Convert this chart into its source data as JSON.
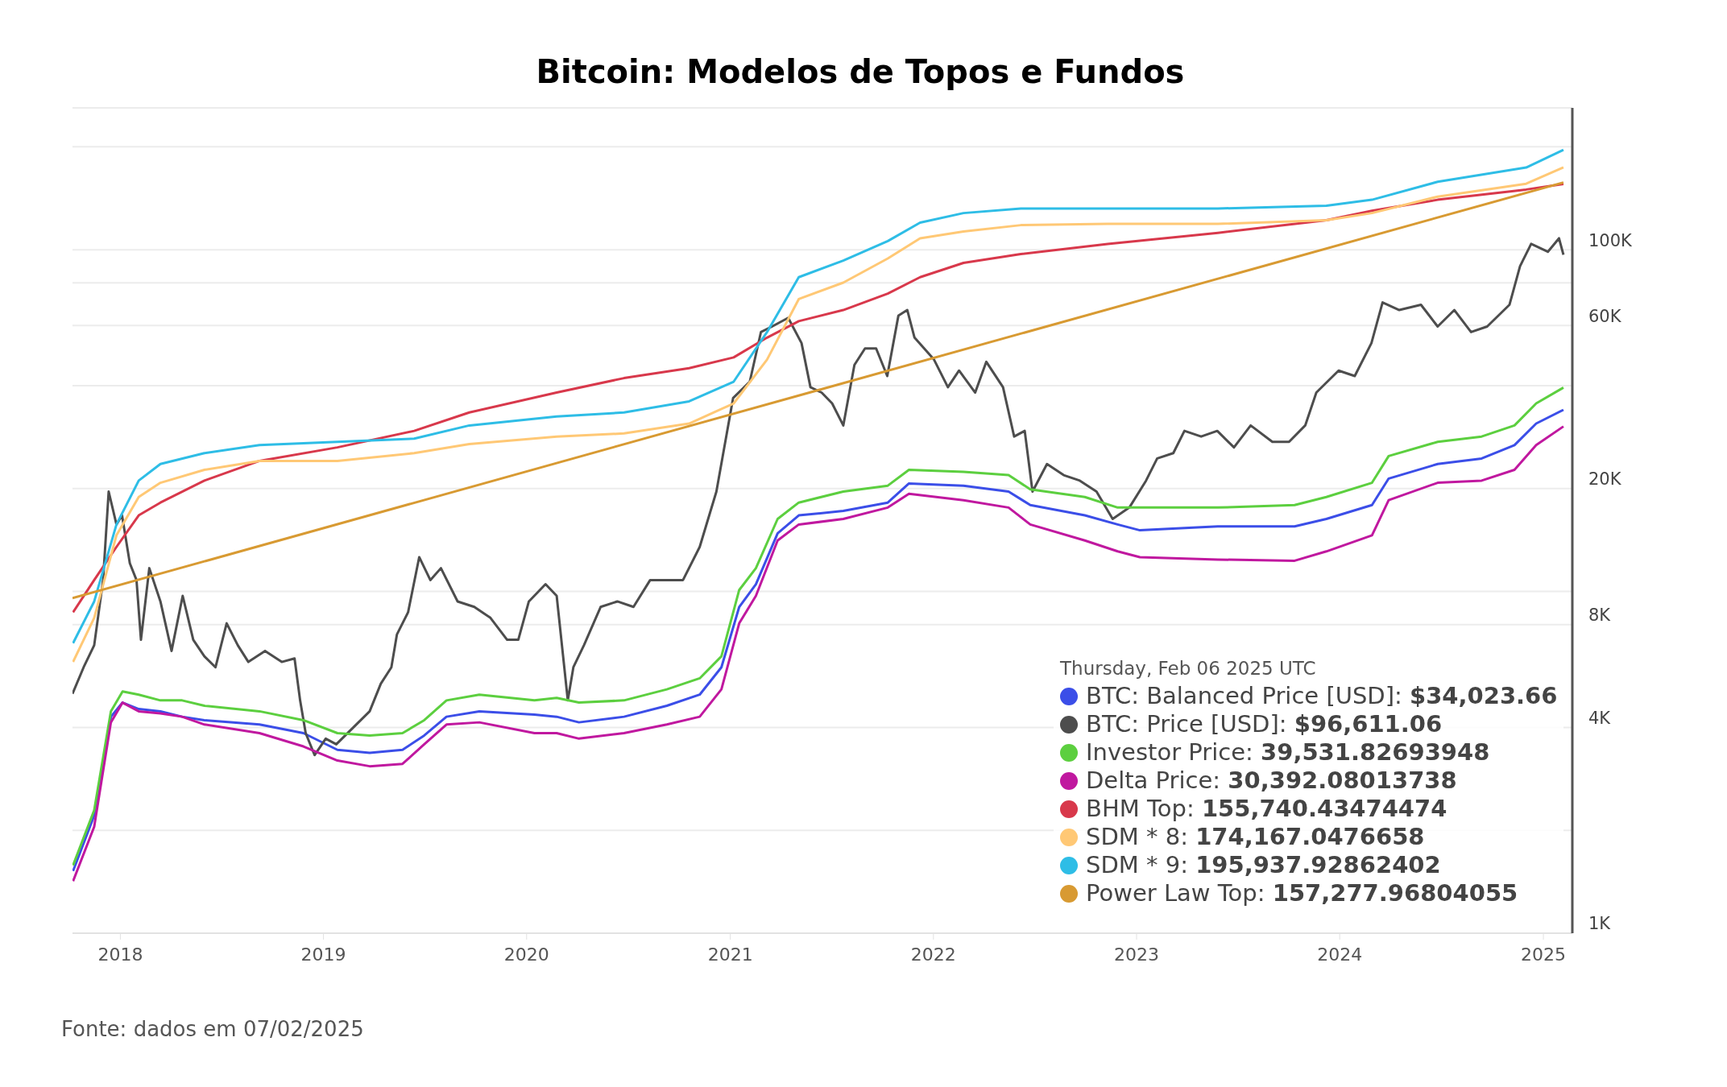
{
  "chart_data": {
    "type": "line",
    "title": "Bitcoin: Modelos de Topos e Fundos",
    "annotations": [
      "Fonte: dados em 07/02/2025"
    ],
    "legend_title": "Thursday, Feb 06 2025 UTC",
    "legend": "bottom right",
    "grid": "y",
    "log": "y",
    "xlim": [
      "2017-10-07",
      "2025-02-22"
    ],
    "xticks": [
      "2018",
      "2019",
      "2020",
      "2021",
      "2022",
      "2023",
      "2024",
      "2025"
    ],
    "ylim": [
      1000,
      260000
    ],
    "yticks": [
      {
        "value": 1000,
        "label": "1K"
      },
      {
        "value": 2000,
        "label": null
      },
      {
        "value": 4000,
        "label": "4K"
      },
      {
        "value": 8000,
        "label": "8K"
      },
      {
        "value": 10000,
        "label": null
      },
      {
        "value": 20000,
        "label": "20K"
      },
      {
        "value": 40000,
        "label": null
      },
      {
        "value": 60000,
        "label": "60K"
      },
      {
        "value": 80000,
        "label": null
      },
      {
        "value": 100000,
        "label": "100K"
      },
      {
        "value": 200000,
        "label": null
      }
    ],
    "series": [
      {
        "name": "BTC: Balanced Price [USD]: $34,023.66",
        "color": "#3b4ee8",
        "x": [
          "2017-10-08",
          "2017-11-15",
          "2017-12-15",
          "2018-01-05",
          "2018-02-03",
          "2018-03-14",
          "2018-04-22",
          "2018-06-01",
          "2018-09-08",
          "2018-11-26",
          "2019-01-26",
          "2019-03-25",
          "2019-05-23",
          "2019-07-01",
          "2019-08-10",
          "2019-10-08",
          "2020-01-15",
          "2020-02-24",
          "2020-04-04",
          "2020-06-24",
          "2020-09-09",
          "2020-11-07",
          "2020-12-16",
          "2021-01-17",
          "2021-02-16",
          "2021-03-27",
          "2021-05-04",
          "2021-07-23",
          "2021-10-11",
          "2021-11-18",
          "2022-02-24",
          "2022-05-16",
          "2022-06-24",
          "2022-09-30",
          "2022-11-28",
          "2023-01-07",
          "2023-05-27",
          "2023-10-12",
          "2023-12-08",
          "2024-02-28",
          "2024-03-29",
          "2024-06-25",
          "2024-09-12",
          "2024-11-10",
          "2024-12-19",
          "2025-02-06"
        ],
        "values": [
          1520,
          2210,
          4300,
          4730,
          4530,
          4460,
          4300,
          4200,
          4080,
          3850,
          3440,
          3370,
          3440,
          3790,
          4300,
          4460,
          4360,
          4300,
          4140,
          4300,
          4630,
          4990,
          6000,
          9010,
          10500,
          14800,
          16700,
          17200,
          18200,
          20700,
          20400,
          19600,
          17900,
          16700,
          15700,
          15100,
          15500,
          15500,
          16300,
          17900,
          21400,
          23600,
          24500,
          26800,
          31000,
          34000
        ]
      },
      {
        "name": "BTC: Price [USD]: $96,611.06",
        "color": "#4d4d4d",
        "x": [
          "2017-10-07",
          "2017-10-27",
          "2017-11-15",
          "2017-12-01",
          "2017-12-11",
          "2017-12-25",
          "2018-01-04",
          "2018-01-18",
          "2018-01-30",
          "2018-02-07",
          "2018-02-22",
          "2018-03-14",
          "2018-04-03",
          "2018-04-23",
          "2018-05-12",
          "2018-06-01",
          "2018-06-21",
          "2018-07-11",
          "2018-07-31",
          "2018-08-19",
          "2018-09-18",
          "2018-10-18",
          "2018-11-10",
          "2018-11-20",
          "2018-11-30",
          "2018-12-16",
          "2019-01-05",
          "2019-01-24",
          "2019-02-23",
          "2019-03-25",
          "2019-04-14",
          "2019-05-03",
          "2019-05-13",
          "2019-06-02",
          "2019-06-22",
          "2019-07-12",
          "2019-07-31",
          "2019-08-30",
          "2019-09-29",
          "2019-10-28",
          "2019-11-27",
          "2019-12-17",
          "2020-01-05",
          "2020-02-04",
          "2020-02-24",
          "2020-03-15",
          "2020-03-25",
          "2020-04-13",
          "2020-05-13",
          "2020-06-12",
          "2020-07-11",
          "2020-08-10",
          "2020-09-09",
          "2020-10-08",
          "2020-11-07",
          "2020-12-07",
          "2021-01-06",
          "2021-02-05",
          "2021-02-25",
          "2021-03-17",
          "2021-04-15",
          "2021-05-09",
          "2021-05-25",
          "2021-06-14",
          "2021-07-03",
          "2021-07-23",
          "2021-08-12",
          "2021-08-31",
          "2021-09-20",
          "2021-10-10",
          "2021-10-30",
          "2021-11-15",
          "2021-11-28",
          "2022-01-02",
          "2022-01-27",
          "2022-02-16",
          "2022-03-17",
          "2022-04-06",
          "2022-05-06",
          "2022-05-26",
          "2022-06-14",
          "2022-06-28",
          "2022-07-24",
          "2022-08-23",
          "2022-09-21",
          "2022-10-21",
          "2022-11-19",
          "2022-12-19",
          "2023-01-18",
          "2023-02-07",
          "2023-03-08",
          "2023-03-28",
          "2023-04-27",
          "2023-05-26",
          "2023-06-25",
          "2023-07-25",
          "2023-09-02",
          "2023-10-02",
          "2023-10-31",
          "2023-11-20",
          "2023-12-30",
          "2024-01-28",
          "2024-02-27",
          "2024-03-18",
          "2024-04-17",
          "2024-05-26",
          "2024-06-25",
          "2024-07-25",
          "2024-08-24",
          "2024-09-22",
          "2024-11-01",
          "2024-11-20",
          "2024-12-10",
          "2025-01-09",
          "2025-01-29",
          "2025-02-06"
        ],
        "values": [
          5020,
          6000,
          6960,
          10800,
          19600,
          15700,
          16700,
          12100,
          10800,
          7220,
          11700,
          9350,
          6700,
          9710,
          7220,
          6460,
          6000,
          8070,
          6960,
          6220,
          6700,
          6220,
          6370,
          4800,
          3850,
          3320,
          3710,
          3570,
          3990,
          4460,
          5370,
          6000,
          7490,
          8690,
          12600,
          10800,
          11700,
          9350,
          9010,
          8370,
          7220,
          7220,
          9350,
          10500,
          9710,
          4800,
          6000,
          6960,
          9010,
          9350,
          9010,
          10800,
          10800,
          10800,
          13500,
          19600,
          36800,
          41100,
          57400,
          59600,
          63200,
          53300,
          39600,
          38200,
          35500,
          30600,
          46000,
          51400,
          51400,
          42700,
          64100,
          66600,
          55300,
          47700,
          39600,
          44300,
          38200,
          47000,
          39600,
          28400,
          29500,
          19600,
          23600,
          21900,
          21100,
          19600,
          16300,
          17600,
          21100,
          24500,
          25400,
          29500,
          28400,
          29500,
          26400,
          30600,
          27400,
          27400,
          30600,
          38200,
          44300,
          42700,
          53300,
          70100,
          66600,
          69000,
          59600,
          66600,
          57400,
          59600,
          69000,
          89500,
          104000,
          98600,
          108000,
          96611
        ]
      },
      {
        "name": "Investor Price: 39,531.82693948",
        "color": "#5ccf3f",
        "x": [
          "2017-10-08",
          "2017-11-15",
          "2017-12-15",
          "2018-01-05",
          "2018-02-03",
          "2018-03-14",
          "2018-04-22",
          "2018-06-01",
          "2018-09-08",
          "2018-11-26",
          "2019-01-26",
          "2019-03-25",
          "2019-05-23",
          "2019-07-01",
          "2019-08-10",
          "2019-10-08",
          "2020-01-15",
          "2020-02-24",
          "2020-04-04",
          "2020-06-24",
          "2020-09-09",
          "2020-11-07",
          "2020-12-16",
          "2021-01-17",
          "2021-02-16",
          "2021-03-27",
          "2021-05-04",
          "2021-07-23",
          "2021-10-11",
          "2021-11-18",
          "2022-02-24",
          "2022-05-16",
          "2022-06-24",
          "2022-09-30",
          "2022-11-28",
          "2023-01-07",
          "2023-05-27",
          "2023-10-12",
          "2023-12-08",
          "2024-02-28",
          "2024-03-29",
          "2024-06-25",
          "2024-09-12",
          "2024-11-10",
          "2024-12-19",
          "2025-02-06"
        ],
        "values": [
          1580,
          2290,
          4460,
          5100,
          4990,
          4800,
          4800,
          4630,
          4460,
          4200,
          3850,
          3790,
          3850,
          4200,
          4800,
          4990,
          4800,
          4880,
          4730,
          4800,
          5170,
          5570,
          6460,
          10100,
          11700,
          16300,
          18200,
          19600,
          20400,
          22700,
          22400,
          21900,
          19900,
          18900,
          17600,
          17600,
          17600,
          17900,
          18900,
          20800,
          24900,
          27400,
          28400,
          30600,
          35500,
          39500
        ]
      },
      {
        "name": "Delta Price: 30,392.08013738",
        "color": "#c0189f",
        "x": [
          "2017-10-08",
          "2017-11-15",
          "2017-12-15",
          "2018-01-05",
          "2018-02-03",
          "2018-03-14",
          "2018-04-22",
          "2018-06-01",
          "2018-09-08",
          "2018-11-26",
          "2019-01-26",
          "2019-03-25",
          "2019-05-23",
          "2019-07-01",
          "2019-08-10",
          "2019-10-08",
          "2020-01-15",
          "2020-02-24",
          "2020-04-04",
          "2020-06-24",
          "2020-09-09",
          "2020-11-07",
          "2020-12-16",
          "2021-01-17",
          "2021-02-16",
          "2021-03-27",
          "2021-05-04",
          "2021-07-23",
          "2021-10-11",
          "2021-11-18",
          "2022-02-24",
          "2022-05-16",
          "2022-06-24",
          "2022-09-30",
          "2022-11-28",
          "2023-01-07",
          "2023-05-27",
          "2023-10-12",
          "2023-12-08",
          "2024-02-28",
          "2024-03-29",
          "2024-06-25",
          "2024-09-12",
          "2024-11-10",
          "2024-12-19",
          "2025-02-06"
        ],
        "values": [
          1420,
          2050,
          4140,
          4730,
          4460,
          4400,
          4300,
          4080,
          3850,
          3520,
          3200,
          3080,
          3130,
          3570,
          4080,
          4140,
          3850,
          3850,
          3710,
          3850,
          4080,
          4300,
          5170,
          8070,
          9710,
          14100,
          15700,
          16300,
          17600,
          19300,
          18500,
          17600,
          15700,
          14100,
          13100,
          12600,
          12400,
          12300,
          13100,
          14600,
          18500,
          20800,
          21100,
          22700,
          26800,
          30400
        ]
      },
      {
        "name": "BHM Top: 155,740.43474474",
        "color": "#d8384b",
        "x": [
          "2017-10-08",
          "2017-11-15",
          "2017-12-25",
          "2018-02-03",
          "2018-03-14",
          "2018-06-01",
          "2018-09-08",
          "2019-01-26",
          "2019-06-13",
          "2019-09-20",
          "2020-02-24",
          "2020-06-24",
          "2020-10-19",
          "2021-01-07",
          "2021-03-08",
          "2021-05-04",
          "2021-07-23",
          "2021-10-11",
          "2021-12-08",
          "2022-02-24",
          "2022-06-07",
          "2022-11-10",
          "2023-05-27",
          "2023-12-08",
          "2024-02-28",
          "2024-06-25",
          "2024-12-01",
          "2025-02-06"
        ],
        "values": [
          8690,
          10800,
          13500,
          16700,
          18200,
          21100,
          24100,
          26400,
          29500,
          33400,
          38200,
          42100,
          45000,
          48400,
          55300,
          61800,
          66600,
          74400,
          83100,
          91500,
          97100,
          104000,
          112000,
          122000,
          130000,
          140000,
          150000,
          155700
        ]
      },
      {
        "name": "SDM * 8: 174,167.0476658",
        "color": "#ffc875",
        "x": [
          "2017-10-08",
          "2017-11-15",
          "2017-12-25",
          "2018-02-03",
          "2018-03-14",
          "2018-06-01",
          "2018-09-08",
          "2019-01-26",
          "2019-06-13",
          "2019-09-20",
          "2020-02-24",
          "2020-06-24",
          "2020-10-19",
          "2021-01-07",
          "2021-03-08",
          "2021-05-04",
          "2021-07-23",
          "2021-10-11",
          "2021-12-08",
          "2022-02-24",
          "2022-06-07",
          "2022-11-10",
          "2023-05-27",
          "2023-12-08",
          "2024-02-28",
          "2024-06-25",
          "2024-12-01",
          "2025-02-06"
        ],
        "values": [
          6220,
          8370,
          14600,
          18900,
          20800,
          22700,
          24100,
          24100,
          25400,
          27000,
          28400,
          29000,
          31000,
          35500,
          47700,
          71700,
          80100,
          94300,
          108000,
          113000,
          118000,
          119000,
          119000,
          122000,
          128000,
          143000,
          156000,
          174200
        ]
      },
      {
        "name": "SDM * 9: 195,937.92862402",
        "color": "#2ebde6",
        "x": [
          "2017-10-08",
          "2017-11-15",
          "2017-12-25",
          "2018-02-03",
          "2018-03-14",
          "2018-06-01",
          "2018-09-08",
          "2019-01-26",
          "2019-06-13",
          "2019-09-20",
          "2020-02-24",
          "2020-06-24",
          "2020-10-19",
          "2021-01-07",
          "2021-03-08",
          "2021-05-04",
          "2021-07-23",
          "2021-10-11",
          "2021-12-08",
          "2022-02-24",
          "2022-06-07",
          "2022-11-10",
          "2023-05-27",
          "2023-12-08",
          "2024-02-28",
          "2024-06-25",
          "2024-12-01",
          "2025-02-06"
        ],
        "values": [
          7060,
          9350,
          15700,
          21100,
          23600,
          25400,
          26800,
          27400,
          28000,
          30600,
          32500,
          33400,
          36000,
          41100,
          57400,
          83100,
          92900,
          106000,
          120000,
          128000,
          132000,
          132000,
          132000,
          134500,
          140000,
          158000,
          174000,
          195900
        ]
      },
      {
        "name": "Power Law Top: 157,277.96804055",
        "color": "#d89a32",
        "x": [
          "2017-10-07",
          "2021-06-12",
          "2025-02-06"
        ],
        "values": [
          9560,
          39000,
          157300
        ]
      }
    ]
  }
}
